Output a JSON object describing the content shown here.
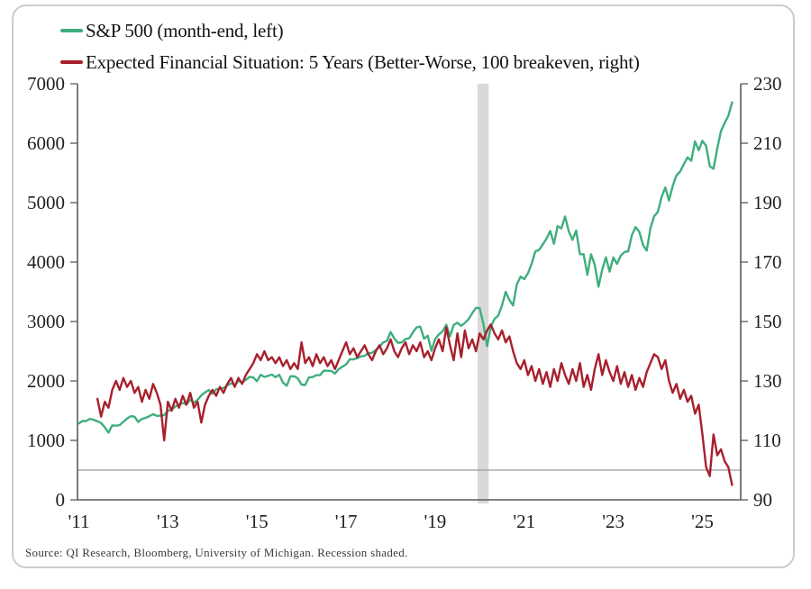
{
  "legend": {
    "items": [
      {
        "label": "S&P 500 (month-end, left)",
        "color": "#3fae7d"
      },
      {
        "label": "Expected Financial Situation: 5 Years (Better-Worse, 100 breakeven, right)",
        "color": "#a7202c"
      }
    ]
  },
  "source_note": "Source: QI Research, Bloomberg, University of Michigan. Recession shaded.",
  "colors": {
    "sp500_line": "#3fae7d",
    "expectations_line": "#a7202c",
    "recession_band": "#d9d9d9",
    "breakeven_line": "#9b9b9b",
    "axis": "#5a5a5a",
    "axis_text": "#1f1f1f"
  },
  "chart_data": {
    "type": "line",
    "x_axis": {
      "range": [
        2010.97,
        2025.86
      ],
      "tick_years": [
        2011,
        2013,
        2015,
        2017,
        2019,
        2021,
        2023,
        2025
      ],
      "tick_labels": [
        "'11",
        "'13",
        "'15",
        "'17",
        "'19",
        "'21",
        "'23",
        "'25"
      ]
    },
    "left_axis": {
      "range": [
        0,
        7000
      ],
      "ticks": [
        0,
        1000,
        2000,
        3000,
        4000,
        5000,
        6000,
        7000
      ]
    },
    "right_axis": {
      "range": [
        90,
        230
      ],
      "ticks": [
        90,
        110,
        130,
        150,
        170,
        190,
        210,
        230
      ]
    },
    "breakeven_line": {
      "axis": "right",
      "value": 100
    },
    "recession_band": {
      "start_year": 2019.95,
      "end_year": 2020.2
    },
    "series": [
      {
        "name": "S&P 500 (month-end, left)",
        "axis": "left",
        "color": "#3fae7d",
        "start_year": 2011.0,
        "points_per_year": 12,
        "values": [
          1286,
          1327,
          1326,
          1364,
          1345,
          1321,
          1292,
          1219,
          1131,
          1253,
          1247,
          1258,
          1312,
          1366,
          1408,
          1398,
          1310,
          1362,
          1379,
          1407,
          1441,
          1412,
          1416,
          1426,
          1498,
          1515,
          1569,
          1598,
          1631,
          1606,
          1686,
          1633,
          1682,
          1757,
          1806,
          1848,
          1783,
          1859,
          1872,
          1884,
          1924,
          1960,
          1931,
          2003,
          1972,
          2018,
          2068,
          2059,
          1995,
          2105,
          2068,
          2086,
          2107,
          2063,
          2104,
          1972,
          1920,
          2079,
          2080,
          2044,
          1940,
          1932,
          2060,
          2065,
          2097,
          2099,
          2174,
          2171,
          2168,
          2126,
          2199,
          2239,
          2279,
          2364,
          2363,
          2384,
          2412,
          2423,
          2470,
          2472,
          2519,
          2575,
          2648,
          2674,
          2824,
          2714,
          2641,
          2648,
          2705,
          2718,
          2816,
          2902,
          2914,
          2712,
          2760,
          2507,
          2704,
          2784,
          2834,
          2946,
          2752,
          2942,
          2980,
          2926,
          2977,
          3038,
          3141,
          3231,
          3226,
          2954,
          2585,
          2912,
          3044,
          3100,
          3271,
          3500,
          3363,
          3270,
          3622,
          3756,
          3714,
          3811,
          3973,
          4181,
          4204,
          4298,
          4395,
          4523,
          4308,
          4605,
          4567,
          4766,
          4516,
          4374,
          4530,
          4132,
          4132,
          3785,
          4130,
          3955,
          3586,
          3872,
          4080,
          3840,
          4077,
          3970,
          4109,
          4169,
          4180,
          4450,
          4589,
          4508,
          4288,
          4194,
          4568,
          4770,
          4846,
          5096,
          5254,
          5036,
          5277,
          5460,
          5522,
          5648,
          5762,
          5705,
          6032,
          5882,
          6041,
          5955,
          5612,
          5569,
          5912,
          6205,
          6339,
          6460,
          6688
        ]
      },
      {
        "name": "Expected Financial Situation: 5 Years (Better-Worse, 100 breakeven, right)",
        "axis": "right",
        "color": "#a7202c",
        "start_year": 2011.4167,
        "points_per_year": 12,
        "values": [
          124,
          118,
          123,
          121,
          127,
          130,
          127,
          131,
          128,
          130,
          126,
          128,
          123,
          127,
          124,
          129,
          126,
          122,
          110,
          123,
          120,
          124,
          121,
          125,
          122,
          126,
          121,
          123,
          116,
          122,
          125,
          127,
          125,
          128,
          126,
          129,
          131,
          128,
          131,
          129,
          132,
          134,
          136,
          139,
          137,
          140,
          137,
          138,
          136,
          138,
          135,
          137,
          134,
          136,
          134,
          143,
          136,
          138,
          135,
          139,
          136,
          138,
          135,
          137,
          134,
          137,
          140,
          143,
          139,
          141,
          138,
          140,
          142,
          139,
          137,
          140,
          142,
          139,
          141,
          144,
          140,
          138,
          141,
          143,
          139,
          142,
          140,
          143,
          138,
          140,
          137,
          141,
          144,
          140,
          148,
          142,
          137,
          146,
          138,
          147,
          141,
          144,
          140,
          146,
          144,
          147,
          149,
          146,
          144,
          147,
          143,
          145,
          140,
          136,
          134,
          137,
          132,
          135,
          130,
          134,
          129,
          133,
          128,
          134,
          130,
          136,
          132,
          129,
          134,
          130,
          136,
          128,
          132,
          127,
          134,
          139,
          132,
          137,
          133,
          130,
          135,
          129,
          133,
          128,
          132,
          127,
          131,
          128,
          133,
          136,
          139,
          138,
          134,
          137,
          130,
          126,
          129,
          124,
          127,
          123,
          125,
          119,
          122,
          112,
          101,
          98,
          112,
          105,
          107,
          103,
          101,
          95
        ]
      }
    ]
  }
}
